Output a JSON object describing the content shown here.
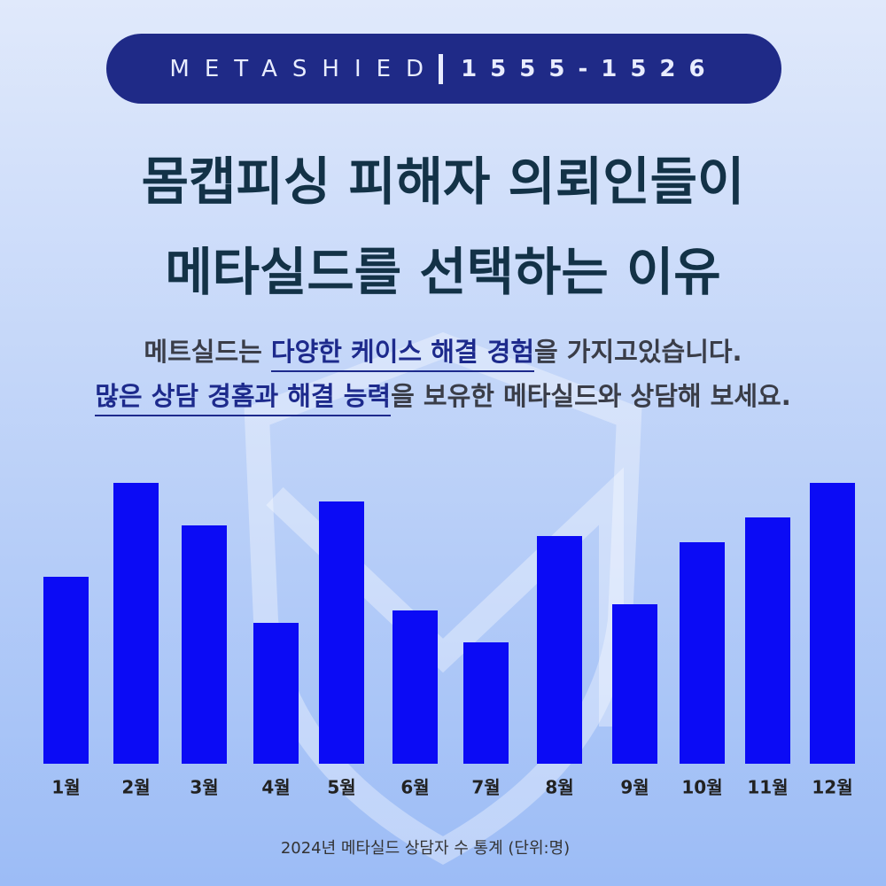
{
  "header": {
    "brand": "METASHIED",
    "phone": "1555-1526"
  },
  "headline": [
    "몸캡피싱 피해자 의뢰인들이",
    "메타실드를 선택하는 이유"
  ],
  "subtitle": [
    [
      {
        "text": "메트실드는 ",
        "emphasis": false
      },
      {
        "text": "다양한 케이스 해결 경험",
        "emphasis": true
      },
      {
        "text": "을 가지고있습니다.",
        "emphasis": false
      }
    ],
    [
      {
        "text": "많은 상담 경홈과 해결 능력",
        "emphasis": true
      },
      {
        "text": "을 보유한 메타실드와 상담해 보세요.",
        "emphasis": false
      }
    ]
  ],
  "chart_data": {
    "type": "bar",
    "caption": "2024년 메타실드 상담자 수 통계 (단위:명)",
    "categories": [
      "1월",
      "2월",
      "3월",
      "4월",
      "5월",
      "6월",
      "7월",
      "8월",
      "9월",
      "10월",
      "11월",
      "12월"
    ],
    "values": [
      211,
      317,
      269,
      159,
      296,
      173,
      137,
      257,
      180,
      250,
      278,
      317
    ],
    "color": "#0b0bf5",
    "ylim": [
      0,
      320
    ]
  }
}
